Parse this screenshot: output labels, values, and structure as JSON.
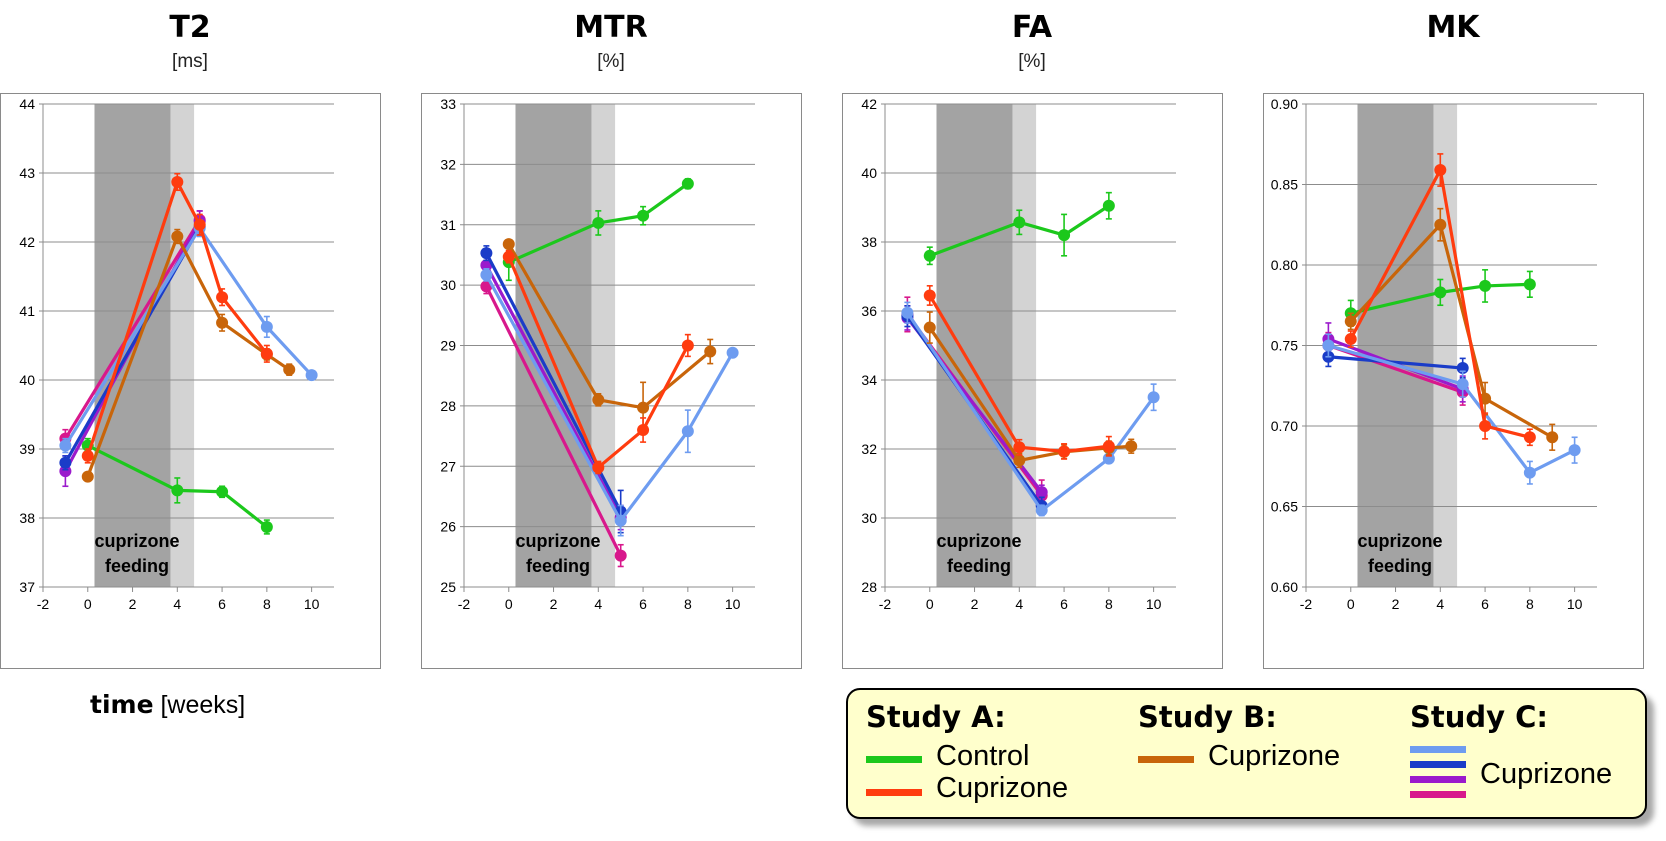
{
  "colors": {
    "control": "#1cc81c",
    "cupA": "#ff3c0f",
    "cupB": "#c8650a",
    "c1": "#6e9cf0",
    "c2": "#1a3cc8",
    "c3": "#9b1acc",
    "c4": "#d8188c",
    "dark_band": "#a3a3a3",
    "light_band": "#d3d3d3"
  },
  "shading": {
    "label_line1": "cuprizone",
    "label_line2": "feeding",
    "dark_range": [
      0.3,
      3.7
    ],
    "light_range": [
      3.7,
      4.75
    ]
  },
  "x_axis_title": {
    "bold": "time",
    "unit": "[weeks]"
  },
  "legend": {
    "study_a": {
      "title": "Study A:",
      "items": [
        {
          "label": "Control",
          "color_key": "control"
        },
        {
          "label": "Cuprizone",
          "color_key": "cupA"
        }
      ]
    },
    "study_b": {
      "title": "Study B:",
      "items": [
        {
          "label": "Cuprizone",
          "color_key": "cupB"
        }
      ]
    },
    "study_c": {
      "title": "Study C:",
      "label": "Cuprizone",
      "color_keys": [
        "c1",
        "c2",
        "c3",
        "c4"
      ]
    }
  },
  "chart_data": [
    {
      "type": "line",
      "title": "T2",
      "unit": "[ms]",
      "xlabel": "time [weeks]",
      "xlim": [
        -2,
        11
      ],
      "xticks": [
        -2,
        0,
        2,
        4,
        6,
        8,
        10
      ],
      "ylim": [
        37,
        44
      ],
      "yticks": [
        "37",
        "38",
        "39",
        "40",
        "41",
        "42",
        "43",
        "44"
      ],
      "series": [
        {
          "name": "Study A Control",
          "color_key": "control",
          "x": [
            0,
            4,
            6,
            8
          ],
          "y": [
            39.05,
            38.4,
            38.38,
            37.87
          ],
          "err": [
            0.1,
            0.18,
            0.08,
            0.1
          ]
        },
        {
          "name": "Study A Cuprizone",
          "color_key": "cupA",
          "x": [
            0,
            4,
            5,
            6,
            8
          ],
          "y": [
            38.9,
            42.87,
            42.25,
            41.2,
            40.38
          ],
          "err": [
            0.1,
            0.12,
            0.15,
            0.12,
            0.12
          ]
        },
        {
          "name": "Study B Cuprizone",
          "color_key": "cupB",
          "x": [
            0,
            4,
            6,
            8,
            9
          ],
          "y": [
            38.6,
            42.08,
            40.83,
            40.37,
            40.15
          ],
          "err": [
            0.05,
            0.1,
            0.12,
            0.08,
            0.08
          ]
        },
        {
          "name": "Study C Cuprizone 1",
          "color_key": "c1",
          "x": [
            -1,
            5,
            8,
            10
          ],
          "y": [
            39.05,
            42.2,
            40.77,
            40.07
          ],
          "err": [
            0.1,
            0.12,
            0.15,
            0.06
          ]
        },
        {
          "name": "Study C Cuprizone 2",
          "color_key": "c2",
          "x": [
            -1,
            5
          ],
          "y": [
            38.8,
            42.22
          ],
          "err": [
            0.1,
            0.1
          ]
        },
        {
          "name": "Study C Cuprizone 3",
          "color_key": "c3",
          "x": [
            -1,
            5
          ],
          "y": [
            38.68,
            42.3
          ],
          "err": [
            0.22,
            0.15
          ]
        },
        {
          "name": "Study C Cuprizone 4",
          "color_key": "c4",
          "x": [
            -1,
            5
          ],
          "y": [
            39.15,
            42.32
          ],
          "err": [
            0.13,
            0.13
          ]
        }
      ]
    },
    {
      "type": "line",
      "title": "MTR",
      "unit": "[%]",
      "xlabel": "time [weeks]",
      "xlim": [
        -2,
        11
      ],
      "xticks": [
        -2,
        0,
        2,
        4,
        6,
        8,
        10
      ],
      "ylim": [
        25,
        33
      ],
      "yticks": [
        "25",
        "26",
        "27",
        "28",
        "29",
        "30",
        "31",
        "32",
        "33"
      ],
      "series": [
        {
          "name": "Study A Control",
          "color_key": "control",
          "x": [
            0,
            4,
            6,
            8
          ],
          "y": [
            30.38,
            31.03,
            31.15,
            31.68
          ],
          "err": [
            0.3,
            0.2,
            0.15,
            0.08
          ]
        },
        {
          "name": "Study A Cuprizone",
          "color_key": "cupA",
          "x": [
            0,
            4,
            6,
            8
          ],
          "y": [
            30.47,
            26.98,
            27.6,
            29.0
          ],
          "err": [
            0.1,
            0.1,
            0.2,
            0.18
          ]
        },
        {
          "name": "Study B Cuprizone",
          "color_key": "cupB",
          "x": [
            0,
            4,
            6,
            9
          ],
          "y": [
            30.68,
            28.1,
            27.97,
            28.9
          ],
          "err": [
            0.05,
            0.1,
            0.42,
            0.2
          ]
        },
        {
          "name": "Study C Cuprizone 1",
          "color_key": "c1",
          "x": [
            -1,
            5,
            8,
            10
          ],
          "y": [
            30.17,
            26.1,
            27.58,
            28.88
          ],
          "err": [
            0.1,
            0.25,
            0.35,
            0.06
          ]
        },
        {
          "name": "Study C Cuprizone 2",
          "color_key": "c2",
          "x": [
            -1,
            5
          ],
          "y": [
            30.53,
            26.25
          ],
          "err": [
            0.12,
            0.35
          ]
        },
        {
          "name": "Study C Cuprizone 3",
          "color_key": "c3",
          "x": [
            -1,
            5
          ],
          "y": [
            30.33,
            26.15
          ],
          "err": [
            0.15,
            0.2
          ]
        },
        {
          "name": "Study C Cuprizone 4",
          "color_key": "c4",
          "x": [
            -1,
            5
          ],
          "y": [
            29.98,
            25.52
          ],
          "err": [
            0.12,
            0.18
          ]
        }
      ]
    },
    {
      "type": "line",
      "title": "FA",
      "unit": "[%]",
      "xlabel": "time [weeks]",
      "xlim": [
        -2,
        11
      ],
      "xticks": [
        -2,
        0,
        2,
        4,
        6,
        8,
        10
      ],
      "ylim": [
        28,
        42
      ],
      "yticks": [
        "28",
        "30",
        "32",
        "34",
        "36",
        "38",
        "40",
        "42"
      ],
      "series": [
        {
          "name": "Study A Control",
          "color_key": "control",
          "x": [
            0,
            4,
            6,
            8
          ],
          "y": [
            37.6,
            38.57,
            38.2,
            39.05
          ],
          "err": [
            0.25,
            0.35,
            0.6,
            0.38
          ]
        },
        {
          "name": "Study A Cuprizone",
          "color_key": "cupA",
          "x": [
            0,
            4,
            6,
            8
          ],
          "y": [
            36.45,
            32.05,
            31.93,
            32.08
          ],
          "err": [
            0.28,
            0.22,
            0.22,
            0.28
          ]
        },
        {
          "name": "Study B Cuprizone",
          "color_key": "cupB",
          "x": [
            0,
            4,
            6,
            8,
            9
          ],
          "y": [
            35.52,
            31.67,
            31.92,
            32.03,
            32.08
          ],
          "err": [
            0.45,
            0.2,
            0.2,
            0.2,
            0.2
          ]
        },
        {
          "name": "Study C Cuprizone 1",
          "color_key": "c1",
          "x": [
            -1,
            5,
            8,
            10
          ],
          "y": [
            35.95,
            30.22,
            31.72,
            33.5
          ],
          "err": [
            0.3,
            0.15,
            0.12,
            0.38
          ]
        },
        {
          "name": "Study C Cuprizone 2",
          "color_key": "c2",
          "x": [
            -1,
            5
          ],
          "y": [
            35.85,
            30.35
          ],
          "err": [
            0.3,
            0.25
          ]
        },
        {
          "name": "Study C Cuprizone 3",
          "color_key": "c3",
          "x": [
            -1,
            5
          ],
          "y": [
            35.8,
            30.75
          ],
          "err": [
            0.35,
            0.2
          ]
        },
        {
          "name": "Study C Cuprizone 4",
          "color_key": "c4",
          "x": [
            -1,
            5
          ],
          "y": [
            35.9,
            30.65
          ],
          "err": [
            0.5,
            0.45
          ]
        }
      ]
    },
    {
      "type": "line",
      "title": "MK",
      "unit": "",
      "xlabel": "time [weeks]",
      "xlim": [
        -2,
        11
      ],
      "xticks": [
        -2,
        0,
        2,
        4,
        6,
        8,
        10
      ],
      "ylim": [
        0.6,
        0.9
      ],
      "yticks": [
        "0.60",
        "0.65",
        "0.70",
        "0.75",
        "0.80",
        "0.85",
        "0.90"
      ],
      "series": [
        {
          "name": "Study A Control",
          "color_key": "control",
          "x": [
            0,
            4,
            6,
            8
          ],
          "y": [
            0.77,
            0.783,
            0.787,
            0.788
          ],
          "err": [
            0.008,
            0.008,
            0.01,
            0.008
          ]
        },
        {
          "name": "Study A Cuprizone",
          "color_key": "cupA",
          "x": [
            0,
            4,
            6,
            8
          ],
          "y": [
            0.754,
            0.859,
            0.7,
            0.693
          ],
          "err": [
            0.005,
            0.01,
            0.008,
            0.005
          ]
        },
        {
          "name": "Study B Cuprizone",
          "color_key": "cupB",
          "x": [
            0,
            4,
            6,
            9
          ],
          "y": [
            0.765,
            0.825,
            0.717,
            0.693
          ],
          "err": [
            0.005,
            0.01,
            0.01,
            0.008
          ]
        },
        {
          "name": "Study C Cuprizone 1",
          "color_key": "c1",
          "x": [
            -1,
            5,
            8,
            10
          ],
          "y": [
            0.75,
            0.726,
            0.671,
            0.685
          ],
          "err": [
            0.007,
            0.008,
            0.007,
            0.008
          ]
        },
        {
          "name": "Study C Cuprizone 2",
          "color_key": "c2",
          "x": [
            -1,
            5
          ],
          "y": [
            0.743,
            0.736
          ],
          "err": [
            0.006,
            0.006
          ]
        },
        {
          "name": "Study C Cuprizone 3",
          "color_key": "c3",
          "x": [
            -1,
            5
          ],
          "y": [
            0.754,
            0.723
          ],
          "err": [
            0.01,
            0.008
          ]
        },
        {
          "name": "Study C Cuprizone 4",
          "color_key": "c4",
          "x": [
            -1,
            5
          ],
          "y": [
            0.75,
            0.721
          ],
          "err": [
            0.008,
            0.008
          ]
        }
      ]
    }
  ]
}
